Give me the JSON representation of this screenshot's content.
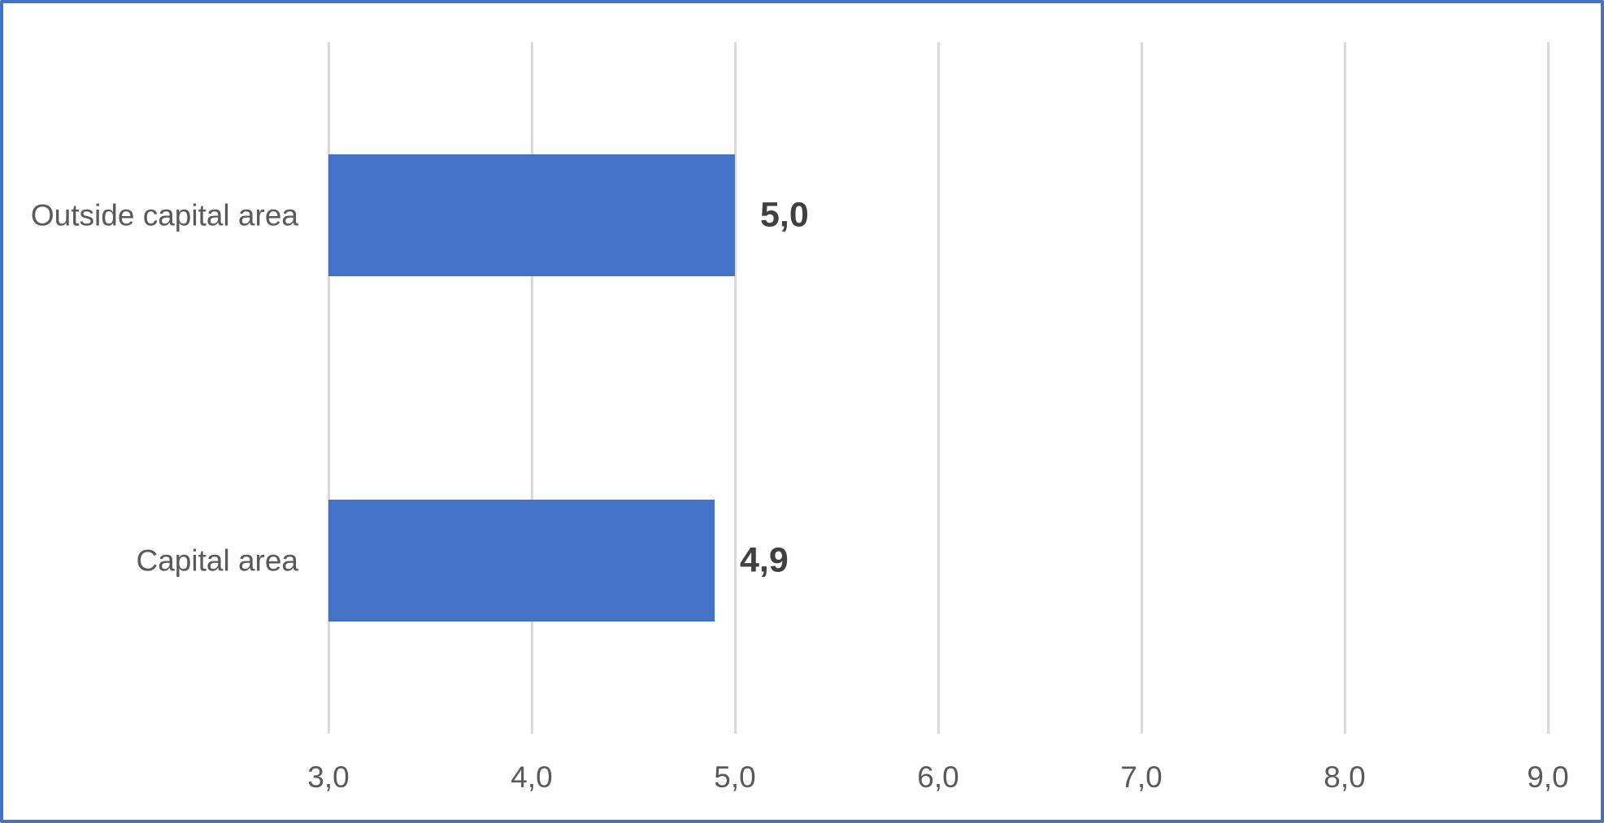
{
  "colors": {
    "bar_fill": "#4472C4",
    "frame_border": "#4472C4",
    "gridline": "#D9D9D9",
    "axis_text": "#595959",
    "data_label_text": "#404040",
    "background": "#FFFFFF"
  },
  "chart_data": {
    "type": "bar",
    "orientation": "horizontal",
    "title": "",
    "xlabel": "",
    "ylabel": "",
    "legend": "none",
    "grid": "vertical major gridlines only",
    "categories": [
      "Outside capital area",
      "Capital area"
    ],
    "values": [
      5.0,
      4.9
    ],
    "data_labels": [
      "5,0",
      "4,9"
    ],
    "x_axis": {
      "min": 3.0,
      "max": 9.0,
      "ticks": [
        3.0,
        4.0,
        5.0,
        6.0,
        7.0,
        8.0,
        9.0
      ],
      "tick_labels": [
        "3,0",
        "4,0",
        "5,0",
        "6,0",
        "7,0",
        "8,0",
        "9,0"
      ]
    }
  }
}
